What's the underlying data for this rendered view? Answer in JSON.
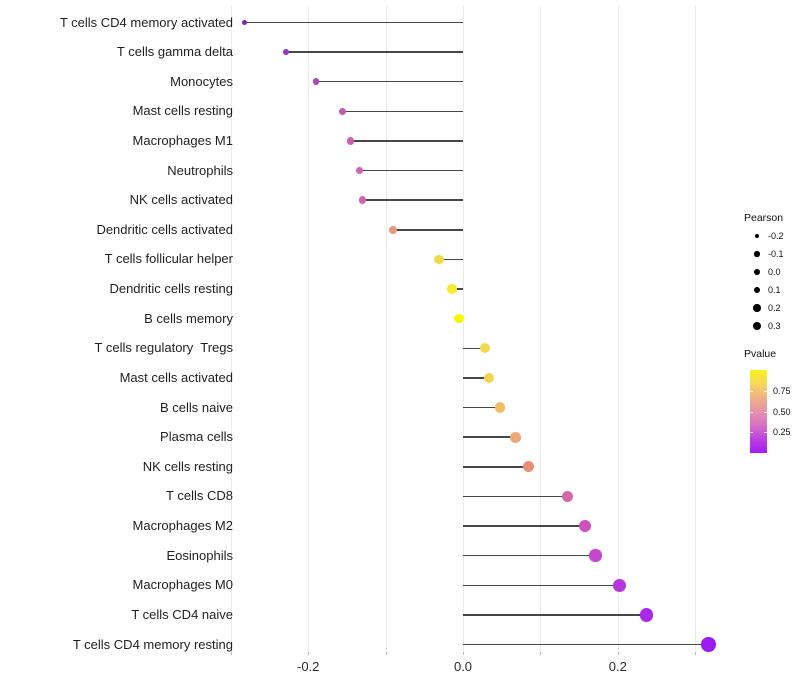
{
  "chart_data": {
    "type": "lollipop",
    "title": "",
    "xlabel": "",
    "ylabel": "",
    "xlim": [
      -0.3,
      0.32
    ],
    "grid_step": 0.1,
    "grid_on": true,
    "x_axis": {
      "tick_values": [
        -0.2,
        0.0,
        0.2
      ],
      "tick_labels": [
        "-0.2",
        "0.0",
        "0.2"
      ],
      "minor_tick_values": [
        -0.3,
        -0.2,
        -0.1,
        0.0,
        0.1,
        0.2,
        0.3
      ]
    },
    "categories": [
      "T cells CD4 memory activated",
      "T cells gamma delta",
      "Monocytes",
      "Mast cells resting",
      "Macrophages M1",
      "Neutrophils",
      "NK cells activated",
      "Dendritic cells activated",
      "T cells follicular helper",
      "Dendritic cells resting",
      "B cells memory",
      "T cells regulatory  Tregs",
      "Mast cells activated",
      "B cells naive",
      "Plasma cells",
      "NK cells resting",
      "T cells CD8",
      "Macrophages M2",
      "Eosinophils",
      "Macrophages M0",
      "T cells CD4 naive",
      "T cells CD4 memory resting"
    ],
    "points": [
      {
        "label": "T cells CD4 memory activated",
        "pearson": -0.282,
        "pvalue_approx": 0.05,
        "color": "#7f26ae"
      },
      {
        "label": "T cells gamma delta",
        "pearson": -0.229,
        "pvalue_approx": 0.12,
        "color": "#9934c6"
      },
      {
        "label": "Monocytes",
        "pearson": -0.19,
        "pvalue_approx": 0.18,
        "color": "#ac43c6"
      },
      {
        "label": "Mast cells resting",
        "pearson": -0.156,
        "pvalue_approx": 0.28,
        "color": "#c05bb4"
      },
      {
        "label": "Macrophages M1",
        "pearson": -0.145,
        "pvalue_approx": 0.3,
        "color": "#c560b2"
      },
      {
        "label": "Neutrophils",
        "pearson": -0.134,
        "pvalue_approx": 0.32,
        "color": "#c966b0"
      },
      {
        "label": "NK cells activated",
        "pearson": -0.13,
        "pvalue_approx": 0.32,
        "color": "#c767b1"
      },
      {
        "label": "Dendritic cells activated",
        "pearson": -0.09,
        "pvalue_approx": 0.55,
        "color": "#e59a7e"
      },
      {
        "label": "T cells follicular helper",
        "pearson": -0.031,
        "pvalue_approx": 0.8,
        "color": "#f0db46"
      },
      {
        "label": "Dendritic cells resting",
        "pearson": -0.014,
        "pvalue_approx": 0.88,
        "color": "#f5eb2e"
      },
      {
        "label": "B cells memory",
        "pearson": -0.005,
        "pvalue_approx": 0.97,
        "color": "#f8f708"
      },
      {
        "label": "T cells regulatory  Tregs",
        "pearson": 0.029,
        "pvalue_approx": 0.8,
        "color": "#f2db4b"
      },
      {
        "label": "Mast cells activated",
        "pearson": 0.034,
        "pvalue_approx": 0.78,
        "color": "#f0d550"
      },
      {
        "label": "B cells naive",
        "pearson": 0.048,
        "pvalue_approx": 0.7,
        "color": "#efbe64"
      },
      {
        "label": "Plasma cells",
        "pearson": 0.068,
        "pvalue_approx": 0.62,
        "color": "#eca878"
      },
      {
        "label": "NK cells resting",
        "pearson": 0.085,
        "pvalue_approx": 0.52,
        "color": "#e68f72"
      },
      {
        "label": "T cells CD8",
        "pearson": 0.135,
        "pvalue_approx": 0.38,
        "color": "#d566a8"
      },
      {
        "label": "Macrophages M2",
        "pearson": 0.158,
        "pvalue_approx": 0.28,
        "color": "#cc50be"
      },
      {
        "label": "Eosinophils",
        "pearson": 0.171,
        "pvalue_approx": 0.23,
        "color": "#c746ce"
      },
      {
        "label": "Macrophages M0",
        "pearson": 0.202,
        "pvalue_approx": 0.16,
        "color": "#b636de"
      },
      {
        "label": "T cells CD4 naive",
        "pearson": 0.237,
        "pvalue_approx": 0.1,
        "color": "#a928ec"
      },
      {
        "label": "T cells CD4 memory resting",
        "pearson": 0.317,
        "pvalue_approx": 0.04,
        "color": "#9b1cf2"
      }
    ],
    "legend": {
      "size": {
        "title": "Pearson",
        "tick_labels": [
          "-0.2",
          "-0.1",
          "0.0",
          "0.1",
          "0.2",
          "0.3"
        ],
        "tick_values": [
          -0.2,
          -0.1,
          0.0,
          0.1,
          0.2,
          0.3
        ]
      },
      "color": {
        "title": "Pvalue",
        "tick_labels": [
          "0.75",
          "0.50",
          "0.25"
        ],
        "tick_values": [
          0.75,
          0.5,
          0.25
        ],
        "gradient_top_to_bottom": [
          "#f9f31c",
          "#f5d75c",
          "#efb285",
          "#e392ab",
          "#d672c6",
          "#bb41e0",
          "#a61bf4"
        ],
        "low_color": "#a61bf4",
        "high_color": "#f9f31c"
      }
    },
    "colors": {
      "stem": "#474747",
      "grid": "#ebebeb",
      "label_text": "#1f1f1f",
      "axis_text": "#2b2b2b",
      "background": "#ffffff"
    }
  }
}
